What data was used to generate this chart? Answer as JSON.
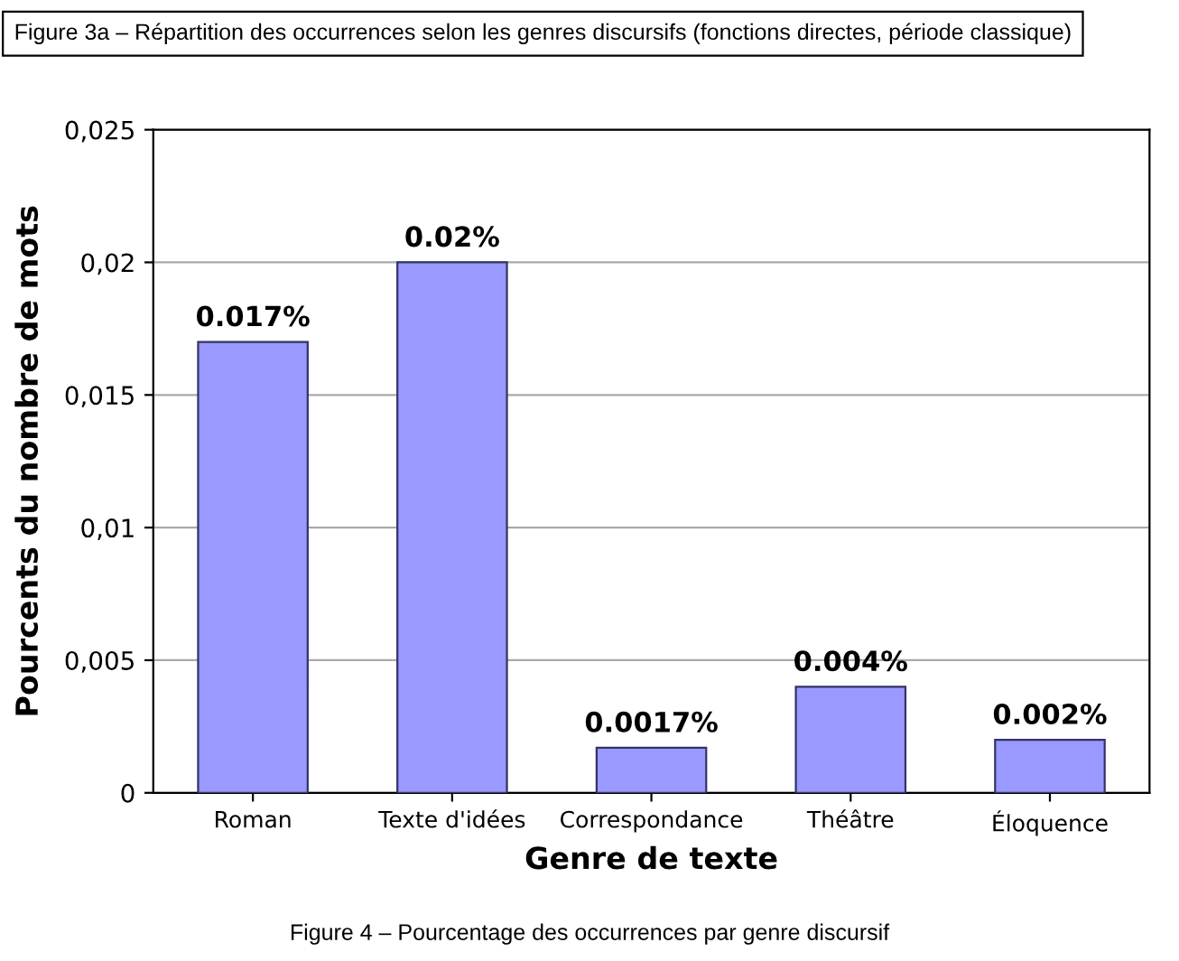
{
  "chart_data": {
    "type": "bar",
    "title": "Figure 3a – Répartition des occurrences selon les genres discursifs (fonctions directes, période classique)",
    "xlabel": "Genre de texte",
    "ylabel": "Pourcents du nombre de mots",
    "categories": [
      "Roman",
      "Texte d'idées",
      "Correspondance",
      "Théâtre",
      "Éloquence"
    ],
    "values": [
      0.017,
      0.02,
      0.0017,
      0.004,
      0.002
    ],
    "value_labels": [
      "0.017%",
      "0.02%",
      "0.0017%",
      "0.004%",
      "0.002%"
    ],
    "color": "#9999ff",
    "ylim": [
      0,
      0.025
    ],
    "yticks": [
      {
        "value": 0,
        "label": "0"
      },
      {
        "value": 0.005,
        "label": "0,005"
      },
      {
        "value": 0.01,
        "label": "0,01"
      },
      {
        "value": 0.015,
        "label": "0,015"
      },
      {
        "value": 0.02,
        "label": "0,02"
      },
      {
        "value": 0.025,
        "label": "0,025"
      }
    ],
    "grid": "y",
    "annotations": [
      "Figure 4 – Pourcentage des occurrences par genre discursif"
    ]
  }
}
